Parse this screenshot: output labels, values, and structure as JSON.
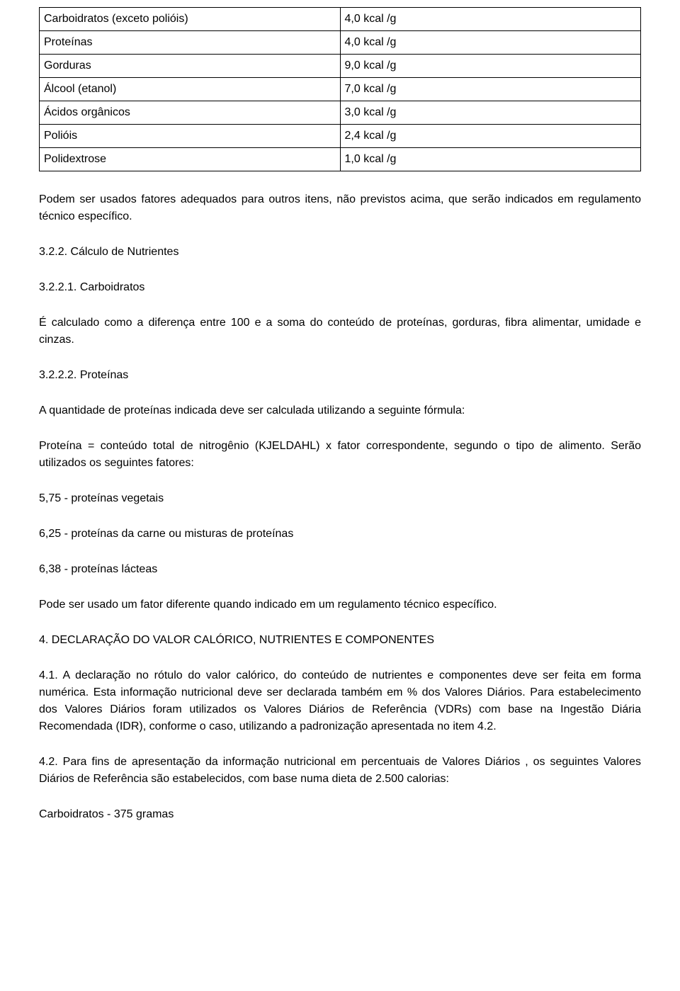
{
  "table": {
    "rows": [
      {
        "label": "Carboidratos (exceto polióis)",
        "value": "4,0 kcal /g"
      },
      {
        "label": "Proteínas",
        "value": "4,0 kcal /g"
      },
      {
        "label": "Gorduras",
        "value": "9,0 kcal /g"
      },
      {
        "label": "Álcool (etanol)",
        "value": "7,0 kcal /g"
      },
      {
        "label": "Ácidos orgânicos",
        "value": "3,0 kcal /g"
      },
      {
        "label": "Polióis",
        "value": "2,4 kcal /g"
      },
      {
        "label": "Polidextrose",
        "value": "1,0 kcal /g"
      }
    ]
  },
  "paragraphs": {
    "p1": "Podem ser usados fatores adequados para outros itens, não previstos acima, que serão indicados em regulamento técnico específico.",
    "h322": "3.2.2. Cálculo de Nutrientes",
    "h3221": "3.2.2.1. Carboidratos",
    "p3221": "É calculado como a diferença entre 100 e a soma do conteúdo de proteínas, gorduras, fibra alimentar, umidade e cinzas.",
    "h3222": "3.2.2.2. Proteínas",
    "p3222a": "A quantidade de proteínas indicada deve ser calculada utilizando a seguinte fórmula:",
    "p3222b": "Proteína = conteúdo total de nitrogênio (KJELDAHL) x fator correspondente, segundo o tipo de alimento. Serão utilizados os seguintes fatores:",
    "f575": "5,75 - proteínas vegetais",
    "f625": "6,25 - proteínas da carne ou misturas de proteínas",
    "f638": "6,38 - proteínas lácteas",
    "pnote": "Pode ser usado um fator diferente quando indicado em um regulamento técnico específico.",
    "h4": "4. DECLARAÇÃO DO VALOR CALÓRICO, NUTRIENTES E COMPONENTES",
    "p41": "4.1. A declaração no rótulo do valor calórico, do conteúdo de nutrientes e componentes deve ser feita em forma numérica. Esta informação nutricional deve ser declarada também em % dos Valores Diários. Para estabelecimento dos Valores Diários foram utilizados os Valores Diários de Referência (VDRs) com base na Ingestão Diária Recomendada (IDR), conforme o caso, utilizando a padronização apresentada no item 4.2.",
    "p42": "4.2. Para fins de apresentação da informação nutricional em percentuais de Valores Diários , os seguintes Valores Diários de Referência são estabelecidos, com base numa dieta de 2.500 calorias:",
    "carb": "Carboidratos - 375 gramas"
  }
}
